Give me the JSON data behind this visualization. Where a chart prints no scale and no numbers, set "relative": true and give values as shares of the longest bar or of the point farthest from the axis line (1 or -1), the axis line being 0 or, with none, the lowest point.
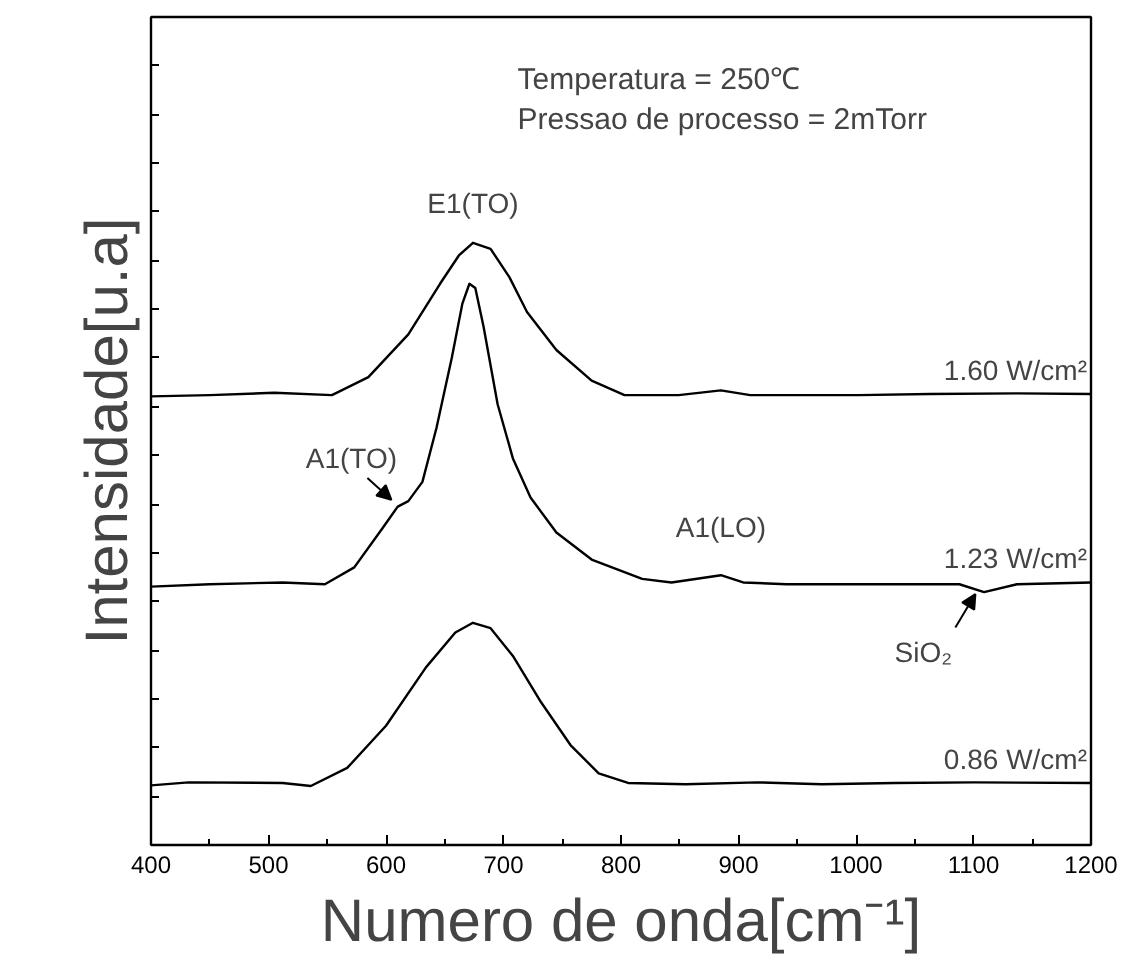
{
  "chart_data": {
    "type": "line",
    "relative": true,
    "xlabel": "Numero de onda[cm⁻¹]",
    "ylabel": "Intensidade[u.a]",
    "xlim": [
      400,
      1200
    ],
    "xticks": [
      400,
      500,
      600,
      700,
      800,
      900,
      1000,
      1100,
      1200
    ],
    "tick_labels": "x",
    "grid": false,
    "marker": "none",
    "line_style": "solid",
    "annotations": [
      "Temperatura = 250℃",
      "Pressao de processo = 2mTorr",
      {
        "text": "E1(TO)",
        "x": 674,
        "y": 1.0
      },
      {
        "text": "A1(TO)",
        "x": 608,
        "y": 0.57
      },
      {
        "text": "A1(LO)",
        "x": 885,
        "y": 0.455
      },
      {
        "text": "SiO₂",
        "x": 1105,
        "y": 0.42
      }
    ],
    "series": [
      {
        "name": "1.60 W/cm²",
        "color": "#000000",
        "x": [
          400,
          450,
          505,
          554,
          585,
          619,
          646,
          662,
          674,
          689,
          705,
          720,
          745,
          775,
          803,
          849,
          885,
          910,
          1002,
          1063,
          1137,
          1200
        ],
        "values": [
          0.745,
          0.747,
          0.751,
          0.747,
          0.777,
          0.848,
          0.932,
          0.979,
          1.0,
          0.99,
          0.943,
          0.885,
          0.822,
          0.771,
          0.747,
          0.747,
          0.755,
          0.747,
          0.747,
          0.749,
          0.75,
          0.749
        ]
      },
      {
        "name": "1.23 W/cm²",
        "color": "#000000",
        "x": [
          400,
          450,
          512,
          548,
          573,
          597,
          610,
          619,
          631,
          643,
          656,
          665,
          671,
          676,
          683,
          695,
          708,
          723,
          745,
          775,
          818,
          843,
          885,
          904,
          941,
          1002,
          1088,
          1109,
          1137,
          1200
        ],
        "values": [
          0.429,
          0.433,
          0.436,
          0.433,
          0.461,
          0.526,
          0.562,
          0.571,
          0.603,
          0.693,
          0.809,
          0.899,
          0.932,
          0.925,
          0.861,
          0.732,
          0.642,
          0.577,
          0.519,
          0.474,
          0.442,
          0.436,
          0.448,
          0.436,
          0.433,
          0.433,
          0.433,
          0.42,
          0.433,
          0.436
        ]
      },
      {
        "name": "0.86 W/cm²",
        "color": "#000000",
        "x": [
          400,
          432,
          512,
          536,
          567,
          600,
          634,
          659,
          674,
          689,
          708,
          732,
          757,
          781,
          806,
          855,
          916,
          971,
          1033,
          1100,
          1200
        ],
        "values": [
          0.099,
          0.104,
          0.103,
          0.098,
          0.128,
          0.198,
          0.295,
          0.353,
          0.369,
          0.36,
          0.314,
          0.237,
          0.166,
          0.119,
          0.103,
          0.101,
          0.104,
          0.101,
          0.103,
          0.104,
          0.103
        ]
      }
    ]
  }
}
